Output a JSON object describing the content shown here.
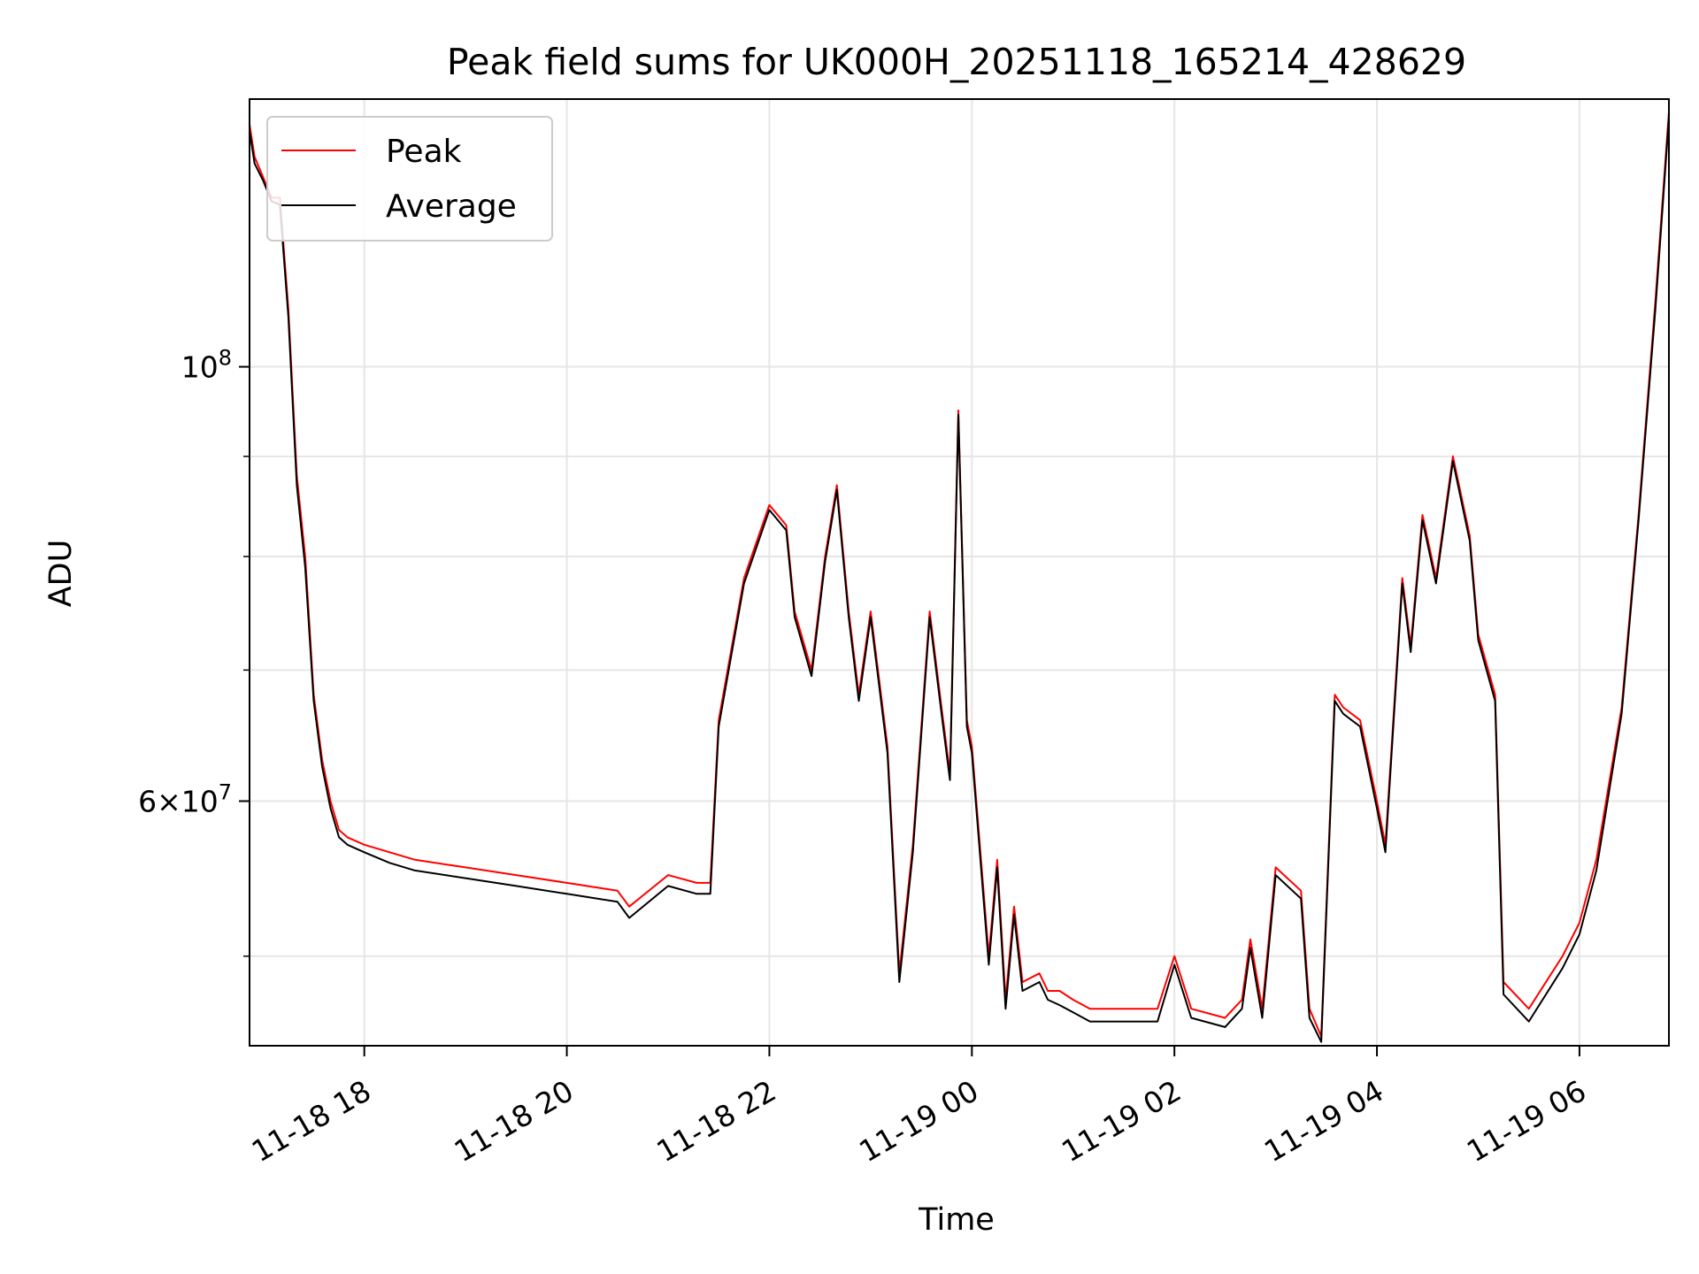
{
  "chart_data": {
    "type": "line",
    "title": "Peak field sums for UK000H_20251118_165214_428629",
    "xlabel": "Time",
    "ylabel": "ADU",
    "yscale": "log",
    "ylim": [
      45000000,
      137000000
    ],
    "xlim": [
      "2025-11-18 16:52",
      "2025-11-19 06:53"
    ],
    "grid": true,
    "legend_position": "upper-left",
    "x_ticks": [
      "11-18 18",
      "11-18 20",
      "11-18 22",
      "11-19 00",
      "11-19 02",
      "11-19 04",
      "11-19 06"
    ],
    "y_ticks": [
      {
        "label_main": "10",
        "label_sup": "8",
        "value": 100000000
      },
      {
        "label_main": "6×10",
        "label_sup": "7",
        "value": 60000000
      }
    ],
    "y_minor_gridlines": [
      50000000,
      70000000,
      80000000,
      90000000
    ],
    "x": [
      "2025-11-18 16:52",
      "2025-11-18 16:55",
      "2025-11-18 17:00",
      "2025-11-18 17:05",
      "2025-11-18 17:10",
      "2025-11-18 17:15",
      "2025-11-18 17:20",
      "2025-11-18 17:25",
      "2025-11-18 17:30",
      "2025-11-18 17:35",
      "2025-11-18 17:40",
      "2025-11-18 17:45",
      "2025-11-18 17:50",
      "2025-11-18 18:00",
      "2025-11-18 18:15",
      "2025-11-18 18:30",
      "2025-11-18 19:00",
      "2025-11-18 19:30",
      "2025-11-18 20:00",
      "2025-11-18 20:30",
      "2025-11-18 20:37",
      "2025-11-18 21:00",
      "2025-11-18 21:17",
      "2025-11-18 21:25",
      "2025-11-18 21:30",
      "2025-11-18 21:45",
      "2025-11-18 22:00",
      "2025-11-18 22:10",
      "2025-11-18 22:15",
      "2025-11-18 22:25",
      "2025-11-18 22:33",
      "2025-11-18 22:40",
      "2025-11-18 22:47",
      "2025-11-18 22:53",
      "2025-11-18 23:00",
      "2025-11-18 23:10",
      "2025-11-18 23:17",
      "2025-11-18 23:25",
      "2025-11-18 23:35",
      "2025-11-18 23:42",
      "2025-11-18 23:47",
      "2025-11-18 23:52",
      "2025-11-18 23:57",
      "2025-11-19 00:00",
      "2025-11-19 00:10",
      "2025-11-19 00:15",
      "2025-11-19 00:20",
      "2025-11-19 00:25",
      "2025-11-19 00:30",
      "2025-11-19 00:40",
      "2025-11-19 00:45",
      "2025-11-19 00:52",
      "2025-11-19 01:00",
      "2025-11-19 01:10",
      "2025-11-19 01:30",
      "2025-11-19 01:50",
      "2025-11-19 02:00",
      "2025-11-19 02:10",
      "2025-11-19 02:30",
      "2025-11-19 02:40",
      "2025-11-19 02:45",
      "2025-11-19 02:52",
      "2025-11-19 03:00",
      "2025-11-19 03:15",
      "2025-11-19 03:20",
      "2025-11-19 03:27",
      "2025-11-19 03:35",
      "2025-11-19 03:40",
      "2025-11-19 03:50",
      "2025-11-19 04:00",
      "2025-11-19 04:05",
      "2025-11-19 04:15",
      "2025-11-19 04:20",
      "2025-11-19 04:27",
      "2025-11-19 04:35",
      "2025-11-19 04:45",
      "2025-11-19 04:55",
      "2025-11-19 05:00",
      "2025-11-19 05:10",
      "2025-11-19 05:15",
      "2025-11-19 05:30",
      "2025-11-19 05:50",
      "2025-11-19 06:00",
      "2025-11-19 06:10",
      "2025-11-19 06:25",
      "2025-11-19 06:35",
      "2025-11-19 06:45",
      "2025-11-19 06:53"
    ],
    "series": [
      {
        "name": "Peak",
        "color": "#ff0000",
        "values": [
          133000000,
          128000000,
          125000000,
          122000000,
          122000000,
          107000000,
          88000000,
          80000000,
          68000000,
          63000000,
          60000000,
          58000000,
          57500000,
          57000000,
          56500000,
          56000000,
          55500000,
          55000000,
          54500000,
          54000000,
          53000000,
          55000000,
          54500000,
          54500000,
          66000000,
          78000000,
          85000000,
          83000000,
          75000000,
          70000000,
          80000000,
          87000000,
          75000000,
          68000000,
          75000000,
          64000000,
          49000000,
          57000000,
          75000000,
          67000000,
          62000000,
          95000000,
          66000000,
          64000000,
          50000000,
          56000000,
          47500000,
          53000000,
          48500000,
          49000000,
          48000000,
          48000000,
          47500000,
          47000000,
          47000000,
          47000000,
          50000000,
          47000000,
          46500000,
          47500000,
          51000000,
          47000000,
          55500000,
          54000000,
          47000000,
          45500000,
          68000000,
          67000000,
          66000000,
          60000000,
          57000000,
          78000000,
          72000000,
          84000000,
          78000000,
          90000000,
          82000000,
          73000000,
          68000000,
          48500000,
          47000000,
          50000000,
          52000000,
          56000000,
          67000000,
          84000000,
          108000000,
          135000000
        ]
      },
      {
        "name": "Average",
        "color": "#000000",
        "values": [
          132000000,
          127000000,
          124500000,
          121500000,
          121000000,
          106000000,
          87000000,
          79000000,
          67500000,
          62500000,
          59500000,
          57500000,
          57000000,
          56500000,
          55800000,
          55300000,
          54800000,
          54300000,
          53800000,
          53300000,
          52300000,
          54300000,
          53800000,
          53800000,
          65500000,
          77500000,
          84500000,
          82500000,
          74500000,
          69500000,
          79500000,
          86500000,
          74500000,
          67500000,
          74500000,
          63500000,
          48500000,
          56500000,
          74500000,
          66500000,
          61500000,
          94500000,
          65500000,
          63500000,
          49500000,
          55500000,
          47000000,
          52500000,
          48000000,
          48500000,
          47500000,
          47200000,
          46800000,
          46300000,
          46300000,
          46300000,
          49500000,
          46500000,
          46000000,
          47000000,
          50500000,
          46500000,
          55000000,
          53500000,
          46500000,
          45200000,
          67500000,
          66500000,
          65500000,
          59500000,
          56500000,
          77500000,
          71500000,
          83500000,
          77500000,
          89500000,
          81500000,
          72500000,
          67500000,
          47800000,
          46300000,
          49300000,
          51300000,
          55300000,
          66500000,
          83500000,
          107000000,
          134000000
        ]
      }
    ]
  }
}
